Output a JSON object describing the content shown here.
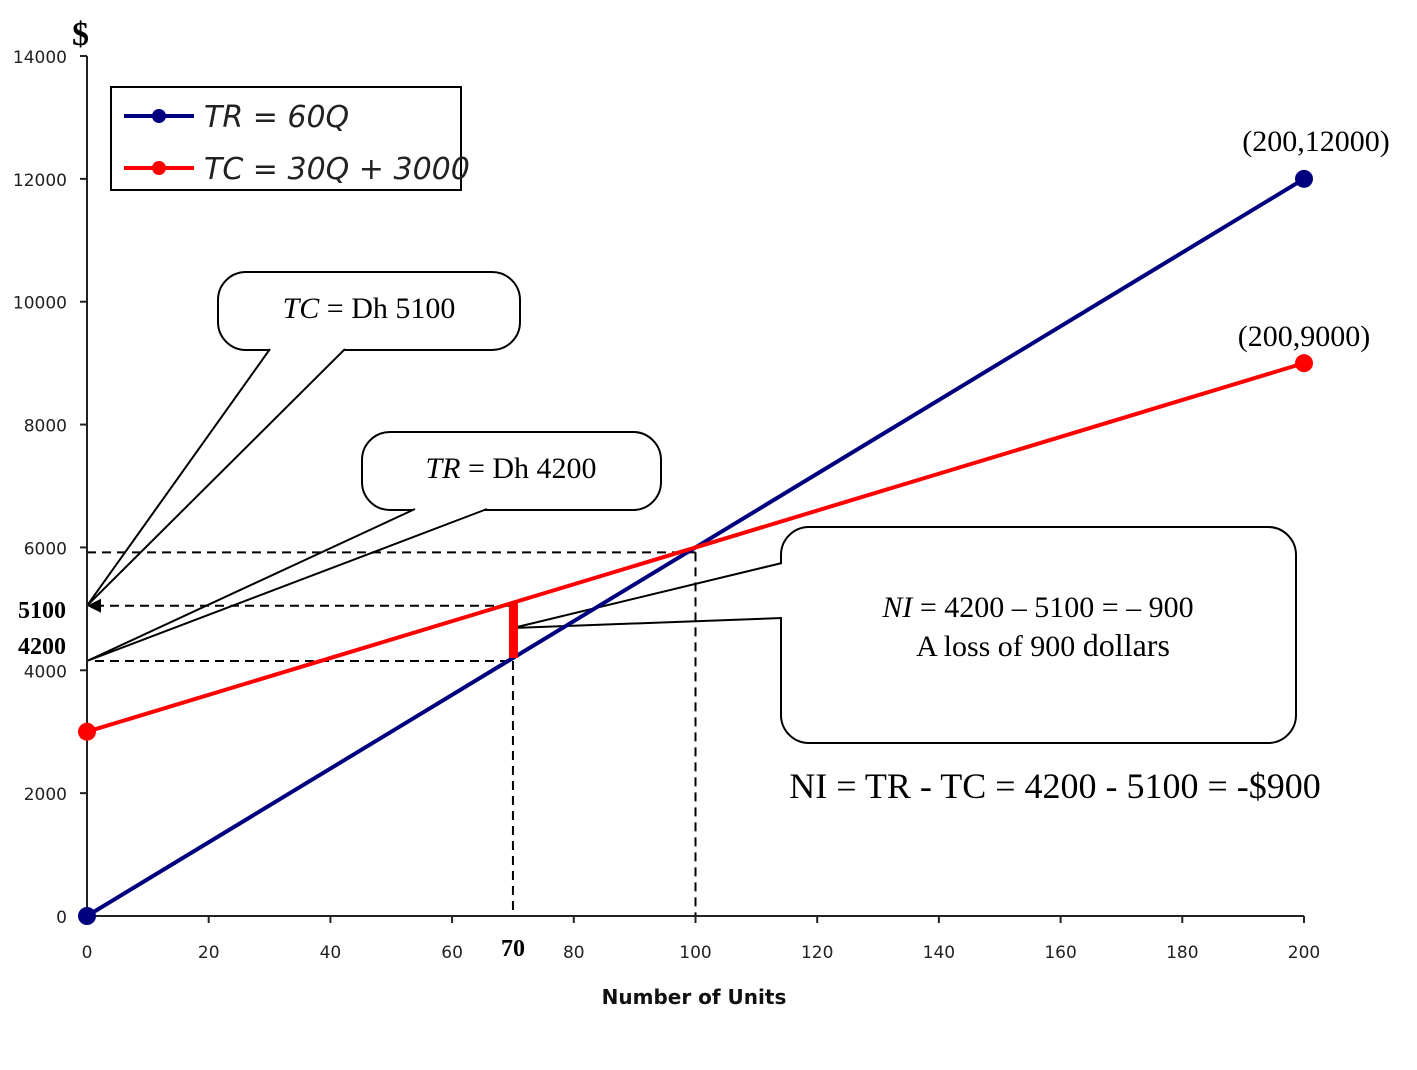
{
  "chart_data": {
    "type": "line",
    "ylabel": "$",
    "xlabel": "Number of Units",
    "xlim": [
      0,
      200
    ],
    "ylim": [
      0,
      14000
    ],
    "xticks": [
      "0",
      "20",
      "40",
      "60",
      "80",
      "100",
      "120",
      "140",
      "160",
      "180",
      "200"
    ],
    "yticks": [
      "0",
      "2000",
      "4000",
      "6000",
      "8000",
      "10000",
      "12000",
      "14000"
    ],
    "grid": false,
    "legend_position": "top-left",
    "series": [
      {
        "name": "TR = 60Q",
        "color": "#00007f",
        "x": [
          0,
          200
        ],
        "y": [
          0,
          12000
        ]
      },
      {
        "name": "TC = 30Q + 3000",
        "color": "#ff0000",
        "x": [
          0,
          200
        ],
        "y": [
          3000,
          9000
        ]
      }
    ],
    "point_labels": [
      {
        "text": "(200,12000)",
        "x": 200,
        "y": 12000
      },
      {
        "text": "(200,9000)",
        "x": 200,
        "y": 9000
      }
    ],
    "highlight_x": {
      "value": 70,
      "label": "70"
    },
    "highlight_y": [
      {
        "value": 5100,
        "label": "5100"
      },
      {
        "value": 4200,
        "label": "4200"
      }
    ],
    "breakeven": {
      "x": 100,
      "y": 6000
    },
    "gap_bar": {
      "x": 70,
      "from": 4200,
      "to": 5100,
      "color": "#ff0000"
    },
    "callouts": {
      "tc": {
        "italic": "TC",
        "text": " = Dh 5100"
      },
      "tr": {
        "italic": "TR",
        "text": " = Dh 4200"
      },
      "ni": {
        "italic": "NI",
        "line1": " = 4200 – 5100 = – 900",
        "line2a": "A loss of 900 ",
        "line2b": "dollars"
      }
    },
    "equation": "NI = TR - TC = 4200 - 5100 = -$900"
  }
}
